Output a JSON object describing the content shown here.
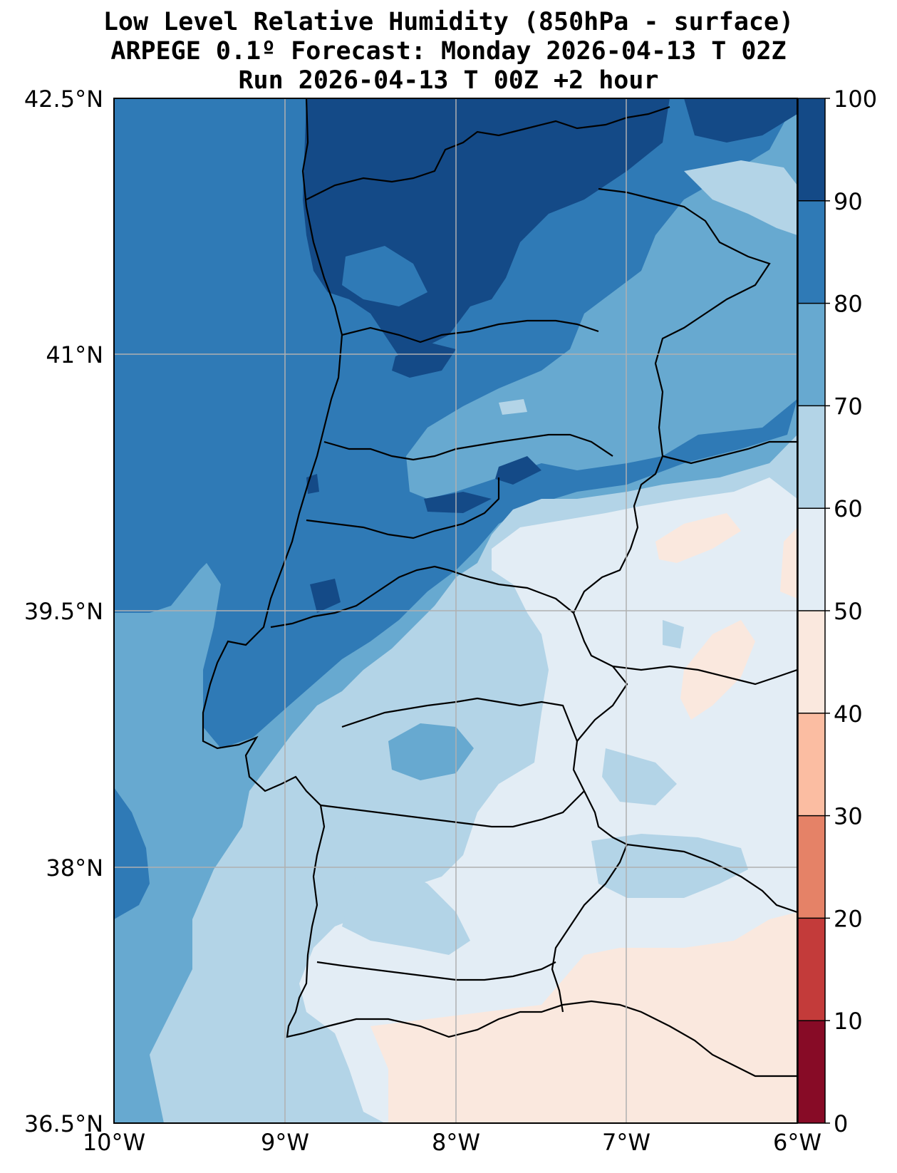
{
  "title": {
    "line1": "Low Level Relative Humidity (850hPa - surface)",
    "line2": "ARPEGE 0.1º Forecast: Monday 2026-04-13 T 02Z",
    "line3": "Run 2026-04-13 T 00Z +2 hour"
  },
  "map": {
    "lon_range": [
      -10,
      -6
    ],
    "lat_range": [
      36.5,
      42.5
    ],
    "lon_ticks": [
      {
        "value": -10,
        "label": "10°W"
      },
      {
        "value": -9,
        "label": "9°W"
      },
      {
        "value": -8,
        "label": "8°W"
      },
      {
        "value": -7,
        "label": "7°W"
      },
      {
        "value": -6,
        "label": "6°W"
      }
    ],
    "lat_ticks": [
      {
        "value": 42.5,
        "label": "42.5°N"
      },
      {
        "value": 41,
        "label": "41°N"
      },
      {
        "value": 39.5,
        "label": "39.5°N"
      },
      {
        "value": 38,
        "label": "38°N"
      },
      {
        "value": 36.5,
        "label": "36.5°N"
      }
    ]
  },
  "colorbar": {
    "levels": [
      0,
      10,
      20,
      30,
      40,
      50,
      60,
      70,
      80,
      90,
      100
    ],
    "labels": [
      "0",
      "10",
      "20",
      "30",
      "40",
      "50",
      "60",
      "70",
      "80",
      "90",
      "100"
    ],
    "colors": [
      "#870b26",
      "#c33b3a",
      "#e58267",
      "#fbbda2",
      "#fae8de",
      "#e3edf5",
      "#b3d4e7",
      "#67a9d0",
      "#2f7ab6",
      "#144a87"
    ]
  }
}
